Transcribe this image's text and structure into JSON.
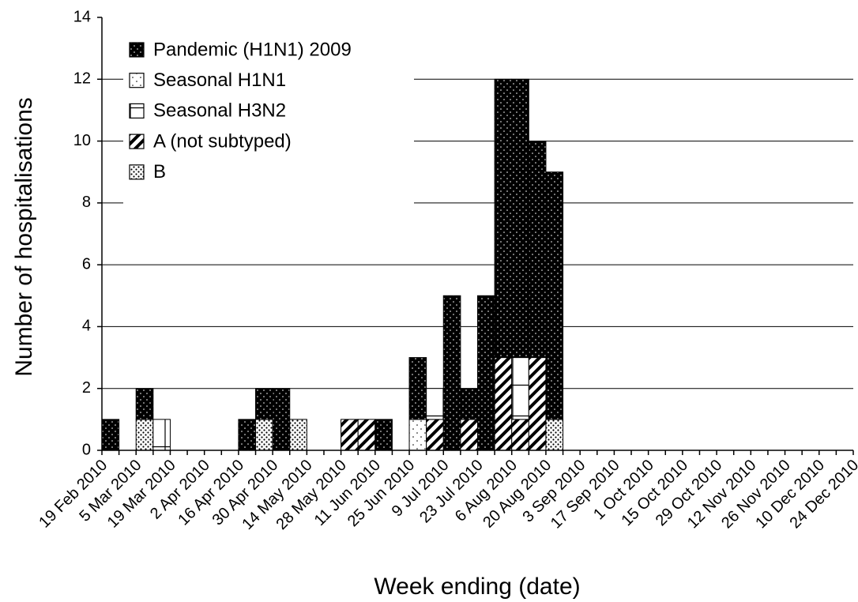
{
  "chart_data": {
    "type": "stacked-bar",
    "y_label": "Number of hospitalisations",
    "x_label": "Week ending (date)",
    "categories": [
      "19 Feb 2010",
      null,
      "5 Mar 2010",
      null,
      "19 Mar 2010",
      null,
      "2 Apr 2010",
      null,
      "16 Apr 2010",
      null,
      "30 Apr 2010",
      null,
      "14 May 2010",
      null,
      "28 May 2010",
      null,
      "11 Jun 2010",
      null,
      "25 Jun 2010",
      null,
      "9 Jul 2010",
      null,
      "23 Jul 2010",
      null,
      "6 Aug 2010",
      null,
      "20 Aug 2010",
      null,
      "3 Sep 2010",
      null,
      "17 Sep 2010",
      null,
      "1 Oct 2010",
      null,
      "15 Oct 2010",
      null,
      "29 Oct 2010",
      null,
      "12 Nov 2010",
      null,
      "26 Nov 2010",
      null,
      "10 Dec 2010",
      null,
      "24 Dec 2010"
    ],
    "series": [
      {
        "name": "Pandemic (H1N1) 2009",
        "color": "#000000",
        "values": [
          1,
          0,
          1,
          0,
          0,
          0,
          0,
          0,
          1,
          1,
          2,
          0,
          0,
          0,
          0,
          0,
          1,
          0,
          2,
          0,
          5,
          1,
          5,
          9,
          9,
          7,
          8,
          0,
          0,
          0,
          0,
          0,
          0,
          0,
          0,
          0,
          0,
          0,
          0,
          0,
          0,
          0,
          0,
          0,
          0
        ]
      },
      {
        "name": "Seasonal H1N1",
        "color": "#ffffff",
        "values": [
          0,
          0,
          0,
          0,
          0,
          0,
          0,
          0,
          0,
          0,
          0,
          0,
          0,
          0,
          0,
          0,
          0,
          0,
          1,
          0,
          0,
          0,
          0,
          0,
          0,
          0,
          0,
          0,
          0,
          0,
          0,
          0,
          0,
          0,
          0,
          0,
          0,
          0,
          0,
          0,
          0,
          0,
          0,
          0,
          0
        ]
      },
      {
        "name": "Seasonal H3N2",
        "color": "#ffffff",
        "values": [
          0,
          0,
          0,
          1,
          0,
          0,
          0,
          0,
          0,
          0,
          0,
          0,
          0,
          0,
          0,
          0,
          0,
          0,
          0,
          1,
          0,
          0,
          0,
          0,
          2,
          0,
          0,
          0,
          0,
          0,
          0,
          0,
          0,
          0,
          0,
          0,
          0,
          0,
          0,
          0,
          0,
          0,
          0,
          0,
          0
        ]
      },
      {
        "name": "A (not subtyped)",
        "color": "#ffffff",
        "values": [
          0,
          0,
          0,
          0,
          0,
          0,
          0,
          0,
          0,
          0,
          0,
          0,
          0,
          0,
          1,
          1,
          0,
          0,
          0,
          1,
          0,
          1,
          0,
          3,
          1,
          3,
          0,
          0,
          0,
          0,
          0,
          0,
          0,
          0,
          0,
          0,
          0,
          0,
          0,
          0,
          0,
          0,
          0,
          0,
          0
        ]
      },
      {
        "name": "B",
        "color": "#ffffff",
        "values": [
          0,
          0,
          1,
          0,
          0,
          0,
          0,
          0,
          0,
          1,
          0,
          1,
          0,
          0,
          0,
          0,
          0,
          0,
          0,
          0,
          0,
          0,
          0,
          0,
          0,
          0,
          1,
          0,
          0,
          0,
          0,
          0,
          0,
          0,
          0,
          0,
          0,
          0,
          0,
          0,
          0,
          0,
          0,
          0,
          0
        ]
      }
    ],
    "ylim": [
      0,
      14
    ],
    "yticks": [
      0,
      2,
      4,
      6,
      8,
      10,
      12,
      14
    ],
    "grid": true,
    "legend": "upper left"
  }
}
